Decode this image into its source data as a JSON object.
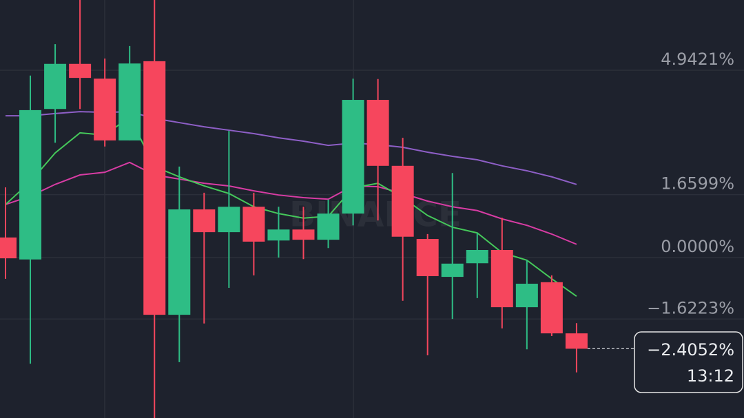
{
  "chart_data": {
    "type": "candlestick",
    "watermark": "BINANCE",
    "categories": [
      null,
      null,
      null,
      null,
      null,
      null,
      null,
      null,
      null,
      null,
      null,
      null,
      null,
      null,
      null,
      null,
      null,
      null,
      null,
      null,
      null,
      null,
      null,
      null
    ],
    "open": [
      0.53,
      -0.05,
      3.92,
      5.11,
      4.72,
      3.09,
      5.18,
      -1.51,
      1.27,
      0.67,
      1.34,
      0.45,
      0.74,
      0.47,
      1.16,
      4.16,
      2.42,
      0.49,
      -0.51,
      -0.15,
      0.2,
      -1.31,
      -0.65,
      -2.0
    ],
    "high": [
      1.85,
      4.8,
      5.63,
      7.0,
      5.25,
      5.58,
      7.0,
      2.4,
      1.71,
      3.34,
      1.71,
      1.34,
      1.34,
      1.53,
      4.72,
      4.71,
      3.16,
      0.62,
      2.23,
      0.65,
      1.05,
      -0.07,
      -0.47,
      -1.73
    ],
    "low": [
      -0.56,
      -2.8,
      3.03,
      3.92,
      2.93,
      3.09,
      -4.5,
      -2.76,
      -1.74,
      -0.8,
      -0.47,
      0,
      -0.04,
      0.25,
      0.85,
      0.98,
      -1.14,
      -2.58,
      -1.62,
      -1.07,
      -1.87,
      -2.42,
      -2.07,
      -3.03
    ],
    "close": [
      -0.02,
      3.89,
      5.11,
      4.74,
      3.09,
      5.12,
      -1.51,
      1.27,
      0.67,
      1.34,
      0.42,
      0.74,
      0.47,
      1.16,
      4.16,
      2.42,
      0.55,
      -0.49,
      -0.16,
      0.2,
      -1.31,
      -0.69,
      -2.0,
      -2.4052
    ],
    "up_color": "#2ebd85",
    "down_color": "#f6465d",
    "lines": [
      {
        "color": "#8e5fc7",
        "values": [
          3.74,
          3.74,
          3.8,
          3.85,
          3.83,
          3.85,
          3.67,
          3.56,
          3.45,
          3.36,
          3.27,
          3.16,
          3.07,
          2.96,
          3.02,
          2.98,
          2.91,
          2.78,
          2.67,
          2.58,
          2.42,
          2.29,
          2.13,
          1.93
        ]
      },
      {
        "color": "#d83ca4",
        "values": [
          1.4,
          1.62,
          1.93,
          2.18,
          2.25,
          2.51,
          2.18,
          2.07,
          1.96,
          1.89,
          1.76,
          1.65,
          1.58,
          1.54,
          1.89,
          1.87,
          1.69,
          1.49,
          1.34,
          1.24,
          1.02,
          0.85,
          0.62,
          0.35
        ]
      },
      {
        "color": "#45c85a",
        "values": [
          1.4,
          2.0,
          2.76,
          3.29,
          3.23,
          3.71,
          2.4,
          2.13,
          1.89,
          1.69,
          1.34,
          1.16,
          1.04,
          1.09,
          1.84,
          1.96,
          1.58,
          1.11,
          0.8,
          0.65,
          0.13,
          -0.07,
          -0.56,
          -1.02
        ]
      }
    ],
    "ylim": [
      -4.233,
      6.795
    ],
    "yticks": [
      {
        "value": 4.9421,
        "label": "4.9421%"
      },
      {
        "value": 1.6599,
        "label": "1.6599%"
      },
      {
        "value": 0.0,
        "label": "0.0000%"
      },
      {
        "value": -1.6223,
        "label": "−1.6223%"
      }
    ],
    "grid": true,
    "current_price": -2.4052,
    "current_price_label": "−2.4052%",
    "countdown": "13:12"
  }
}
